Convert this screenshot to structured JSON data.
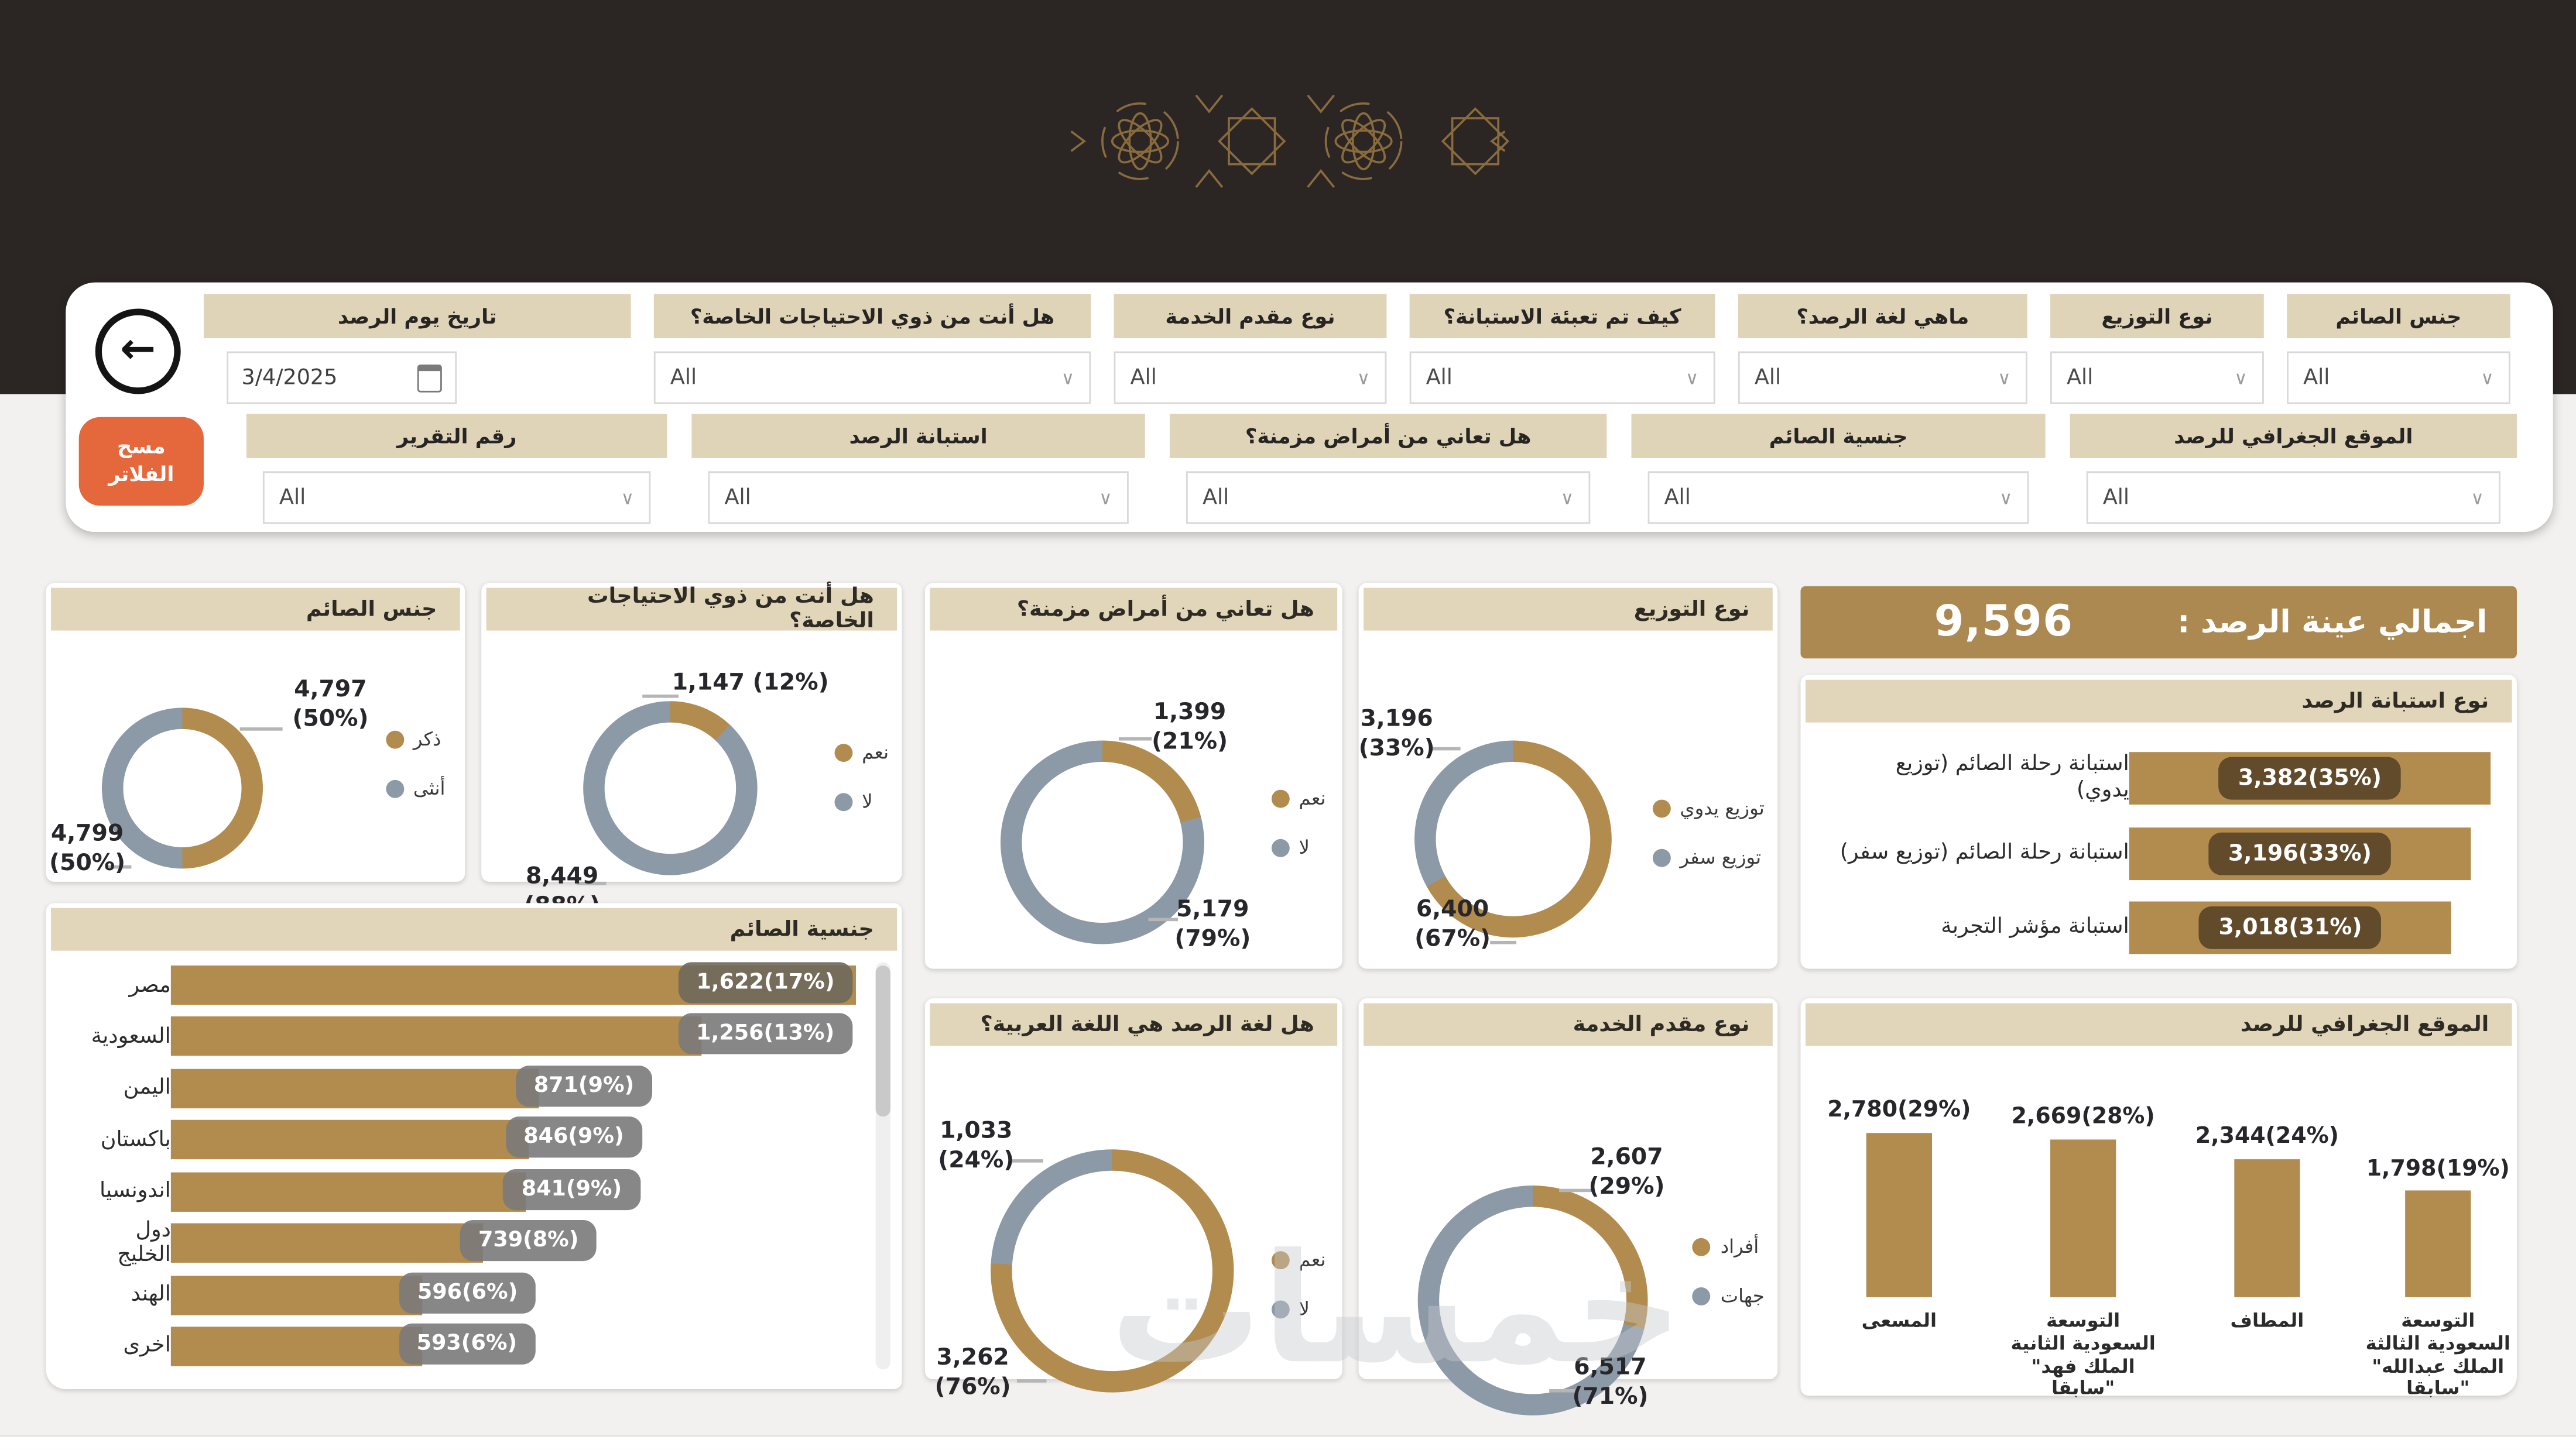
{
  "colors": {
    "gold": "#b28c4e",
    "slate": "#8c99a6",
    "beige": "#e2d6ba",
    "banner_gold": "#ab8950",
    "orange": "#e5673c",
    "dark_band": "#2b2623"
  },
  "icons": {
    "back": "←",
    "dropdown_chevron": "∨",
    "calendar": "calendar-grid"
  },
  "watermark": "خمسات",
  "filters": {
    "all_option": "All",
    "clear_line1": "مسح",
    "clear_line2": "الفلاتر",
    "date_value": "3/4/2025",
    "row1": [
      {
        "label": "جنس الصائم"
      },
      {
        "label": "نوع التوزيع"
      },
      {
        "label": "ماهي لغة الرصد؟"
      },
      {
        "label": "كيف تم تعبئة الاستبانة؟"
      },
      {
        "label": "نوع مقدم الخدمة"
      },
      {
        "label": "هل أنت من ذوي الاحتياجات الخاصة؟"
      },
      {
        "label": "تاريخ يوم الرصد"
      }
    ],
    "row2": [
      {
        "label": "الموقع الجغرافي للرصد"
      },
      {
        "label": "جنسية الصائم"
      },
      {
        "label": "هل تعاني من أمراض مزمنة؟"
      },
      {
        "label": "استبانة الرصد"
      },
      {
        "label": "رقم التقرير"
      }
    ]
  },
  "kpi": {
    "title": "اجمالي عينة الرصد :",
    "value": "9,596"
  },
  "chart_data": [
    {
      "id": "gender",
      "type": "donut",
      "title": "جنس الصائم",
      "legend_position": "right",
      "slices": [
        {
          "name": "ذكر",
          "value": 4797,
          "pct": 50,
          "call1": "4,797",
          "call2": "(50%)",
          "color": "#b28c4e"
        },
        {
          "name": "أنثى",
          "value": 4799,
          "pct": 50,
          "call1": "4,799",
          "call2": "(50%)",
          "color": "#8c99a6"
        }
      ]
    },
    {
      "id": "special_needs",
      "type": "donut",
      "title": "هل أنت من ذوي الاحتياجات الخاصة؟",
      "legend_position": "right",
      "slices": [
        {
          "name": "نعم",
          "value": 1147,
          "pct": 12,
          "call1": "1,147 (12%)",
          "call2": "",
          "color": "#b28c4e"
        },
        {
          "name": "لا",
          "value": 8449,
          "pct": 88,
          "call1": "8,449",
          "call2": "(88%)",
          "color": "#8c99a6"
        }
      ]
    },
    {
      "id": "chronic_disease",
      "type": "donut",
      "title": "هل تعاني من أمراض مزمنة؟",
      "legend_position": "right",
      "slices": [
        {
          "name": "نعم",
          "value": 1399,
          "pct": 21,
          "call1": "1,399",
          "call2": "(21%)",
          "color": "#b28c4e"
        },
        {
          "name": "لا",
          "value": 5179,
          "pct": 79,
          "call1": "5,179",
          "call2": "(79%)",
          "color": "#8c99a6"
        }
      ]
    },
    {
      "id": "distribution_type",
      "type": "donut",
      "title": "نوع التوزيع",
      "legend_position": "right",
      "slices": [
        {
          "name": "توزيع يدوي",
          "value": 6400,
          "pct": 67,
          "call1": "6,400",
          "call2": "(67%)",
          "color": "#b28c4e"
        },
        {
          "name": "توزيع سفر",
          "value": 3196,
          "pct": 33,
          "call1": "3,196",
          "call2": "(33%)",
          "color": "#8c99a6"
        }
      ]
    },
    {
      "id": "arabic_language",
      "type": "donut",
      "title": "هل لغة الرصد هي اللغة العربية؟",
      "legend_position": "right",
      "slices": [
        {
          "name": "نعم",
          "value": 3262,
          "pct": 76,
          "call1": "3,262",
          "call2": "(76%)",
          "color": "#b28c4e"
        },
        {
          "name": "لا",
          "value": 1033,
          "pct": 24,
          "call1": "1,033",
          "call2": "(24%)",
          "color": "#8c99a6"
        }
      ]
    },
    {
      "id": "provider_type",
      "type": "donut",
      "title": "نوع مقدم الخدمة",
      "legend_position": "right",
      "slices": [
        {
          "name": "أفراد",
          "value": 2607,
          "pct": 29,
          "call1": "2,607",
          "call2": "(29%)",
          "color": "#b28c4e"
        },
        {
          "name": "جهات",
          "value": 6517,
          "pct": 71,
          "call1": "6,517",
          "call2": "(71%)",
          "color": "#8c99a6"
        }
      ]
    },
    {
      "id": "survey_type",
      "type": "bar",
      "orientation": "horizontal",
      "title": "نوع استبانة الرصد",
      "bar_color": "#b28c4e",
      "rows": [
        {
          "name": "استبانة رحلة الصائم (توزيع يدوي)",
          "value": 3382,
          "label": "3,382(35%)",
          "pct": 100
        },
        {
          "name": "استبانة رحلة الصائم (توزيع سفر)",
          "value": 3196,
          "label": "3,196(33%)",
          "pct": 94.5
        },
        {
          "name": "استبانة مؤشر التجربة",
          "value": 3018,
          "label": "3,018(31%)",
          "pct": 89.2
        }
      ]
    },
    {
      "id": "fasting_nationality",
      "type": "bar",
      "orientation": "horizontal",
      "title": "جنسية الصائم",
      "bar_color": "#b28c4e",
      "scrollbar": true,
      "rows": [
        {
          "name": "مصر",
          "value": 1622,
          "label": "1,622(17%)",
          "pct": 100
        },
        {
          "name": "السعودية",
          "value": 1256,
          "label": "1,256(13%)",
          "pct": 77.4
        },
        {
          "name": "اليمن",
          "value": 871,
          "label": "871(9%)",
          "pct": 53.7
        },
        {
          "name": "باكستان",
          "value": 846,
          "label": "846(9%)",
          "pct": 52.2
        },
        {
          "name": "اندونسيا",
          "value": 841,
          "label": "841(9%)",
          "pct": 51.9
        },
        {
          "name": "دول الخليج",
          "value": 739,
          "label": "739(8%)",
          "pct": 45.6
        },
        {
          "name": "الهند",
          "value": 596,
          "label": "596(6%)",
          "pct": 36.7
        },
        {
          "name": "اخرى",
          "value": 593,
          "label": "593(6%)",
          "pct": 36.6
        }
      ]
    },
    {
      "id": "monitoring_location",
      "type": "column",
      "title": "الموقع الجغرافي للرصد",
      "bar_color": "#b28c4e",
      "cols": [
        {
          "name": "المسعى",
          "value": 2780,
          "label": "2,780(29%)",
          "pct": 100
        },
        {
          "name": "التوسعة\nالسعودية الثانية\nالملك فهد\"\n\"سابقا",
          "value": 2669,
          "label": "2,669(28%)",
          "pct": 96
        },
        {
          "name": "المطاف",
          "value": 2344,
          "label": "2,344(24%)",
          "pct": 84.3
        },
        {
          "name": "التوسعة\nالسعودية الثالثة\nالملك عبدالله\"\n\"سابقا",
          "value": 1798,
          "label": "1,798(19%)",
          "pct": 64.7
        }
      ]
    }
  ]
}
